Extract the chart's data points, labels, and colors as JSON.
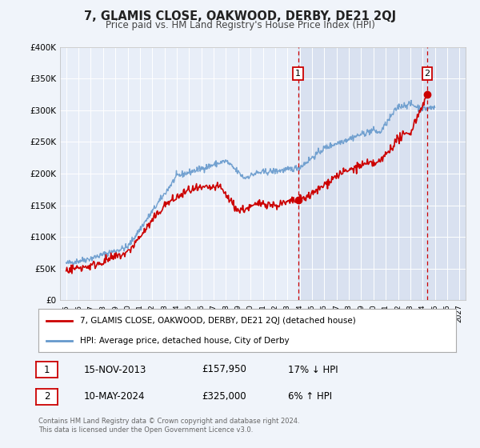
{
  "title": "7, GLAMIS CLOSE, OAKWOOD, DERBY, DE21 2QJ",
  "subtitle": "Price paid vs. HM Land Registry's House Price Index (HPI)",
  "bg_color": "#f0f4fa",
  "plot_bg_color": "#e8eef8",
  "grid_color": "#ffffff",
  "red_color": "#cc0000",
  "blue_color": "#6699cc",
  "ylim": [
    0,
    400000
  ],
  "yticks": [
    0,
    50000,
    100000,
    150000,
    200000,
    250000,
    300000,
    350000,
    400000
  ],
  "xlim_start": 1994.5,
  "xlim_end": 2027.5,
  "xticks": [
    1995,
    1996,
    1997,
    1998,
    1999,
    2000,
    2001,
    2002,
    2003,
    2004,
    2005,
    2006,
    2007,
    2008,
    2009,
    2010,
    2011,
    2012,
    2013,
    2014,
    2015,
    2016,
    2017,
    2018,
    2019,
    2020,
    2021,
    2022,
    2023,
    2024,
    2025,
    2026,
    2027
  ],
  "sale1_year": 2013.87,
  "sale1_price": 157950,
  "sale1_label": "1",
  "sale2_year": 2024.37,
  "sale2_price": 325000,
  "sale2_label": "2",
  "legend_label_red": "7, GLAMIS CLOSE, OAKWOOD, DERBY, DE21 2QJ (detached house)",
  "legend_label_blue": "HPI: Average price, detached house, City of Derby",
  "table_row1": [
    "1",
    "15-NOV-2013",
    "£157,950",
    "17% ↓ HPI"
  ],
  "table_row2": [
    "2",
    "10-MAY-2024",
    "£325,000",
    "6% ↑ HPI"
  ],
  "footer_line1": "Contains HM Land Registry data © Crown copyright and database right 2024.",
  "footer_line2": "This data is licensed under the Open Government Licence v3.0.",
  "shade_start": 2013.87,
  "shade_end": 2027.5
}
